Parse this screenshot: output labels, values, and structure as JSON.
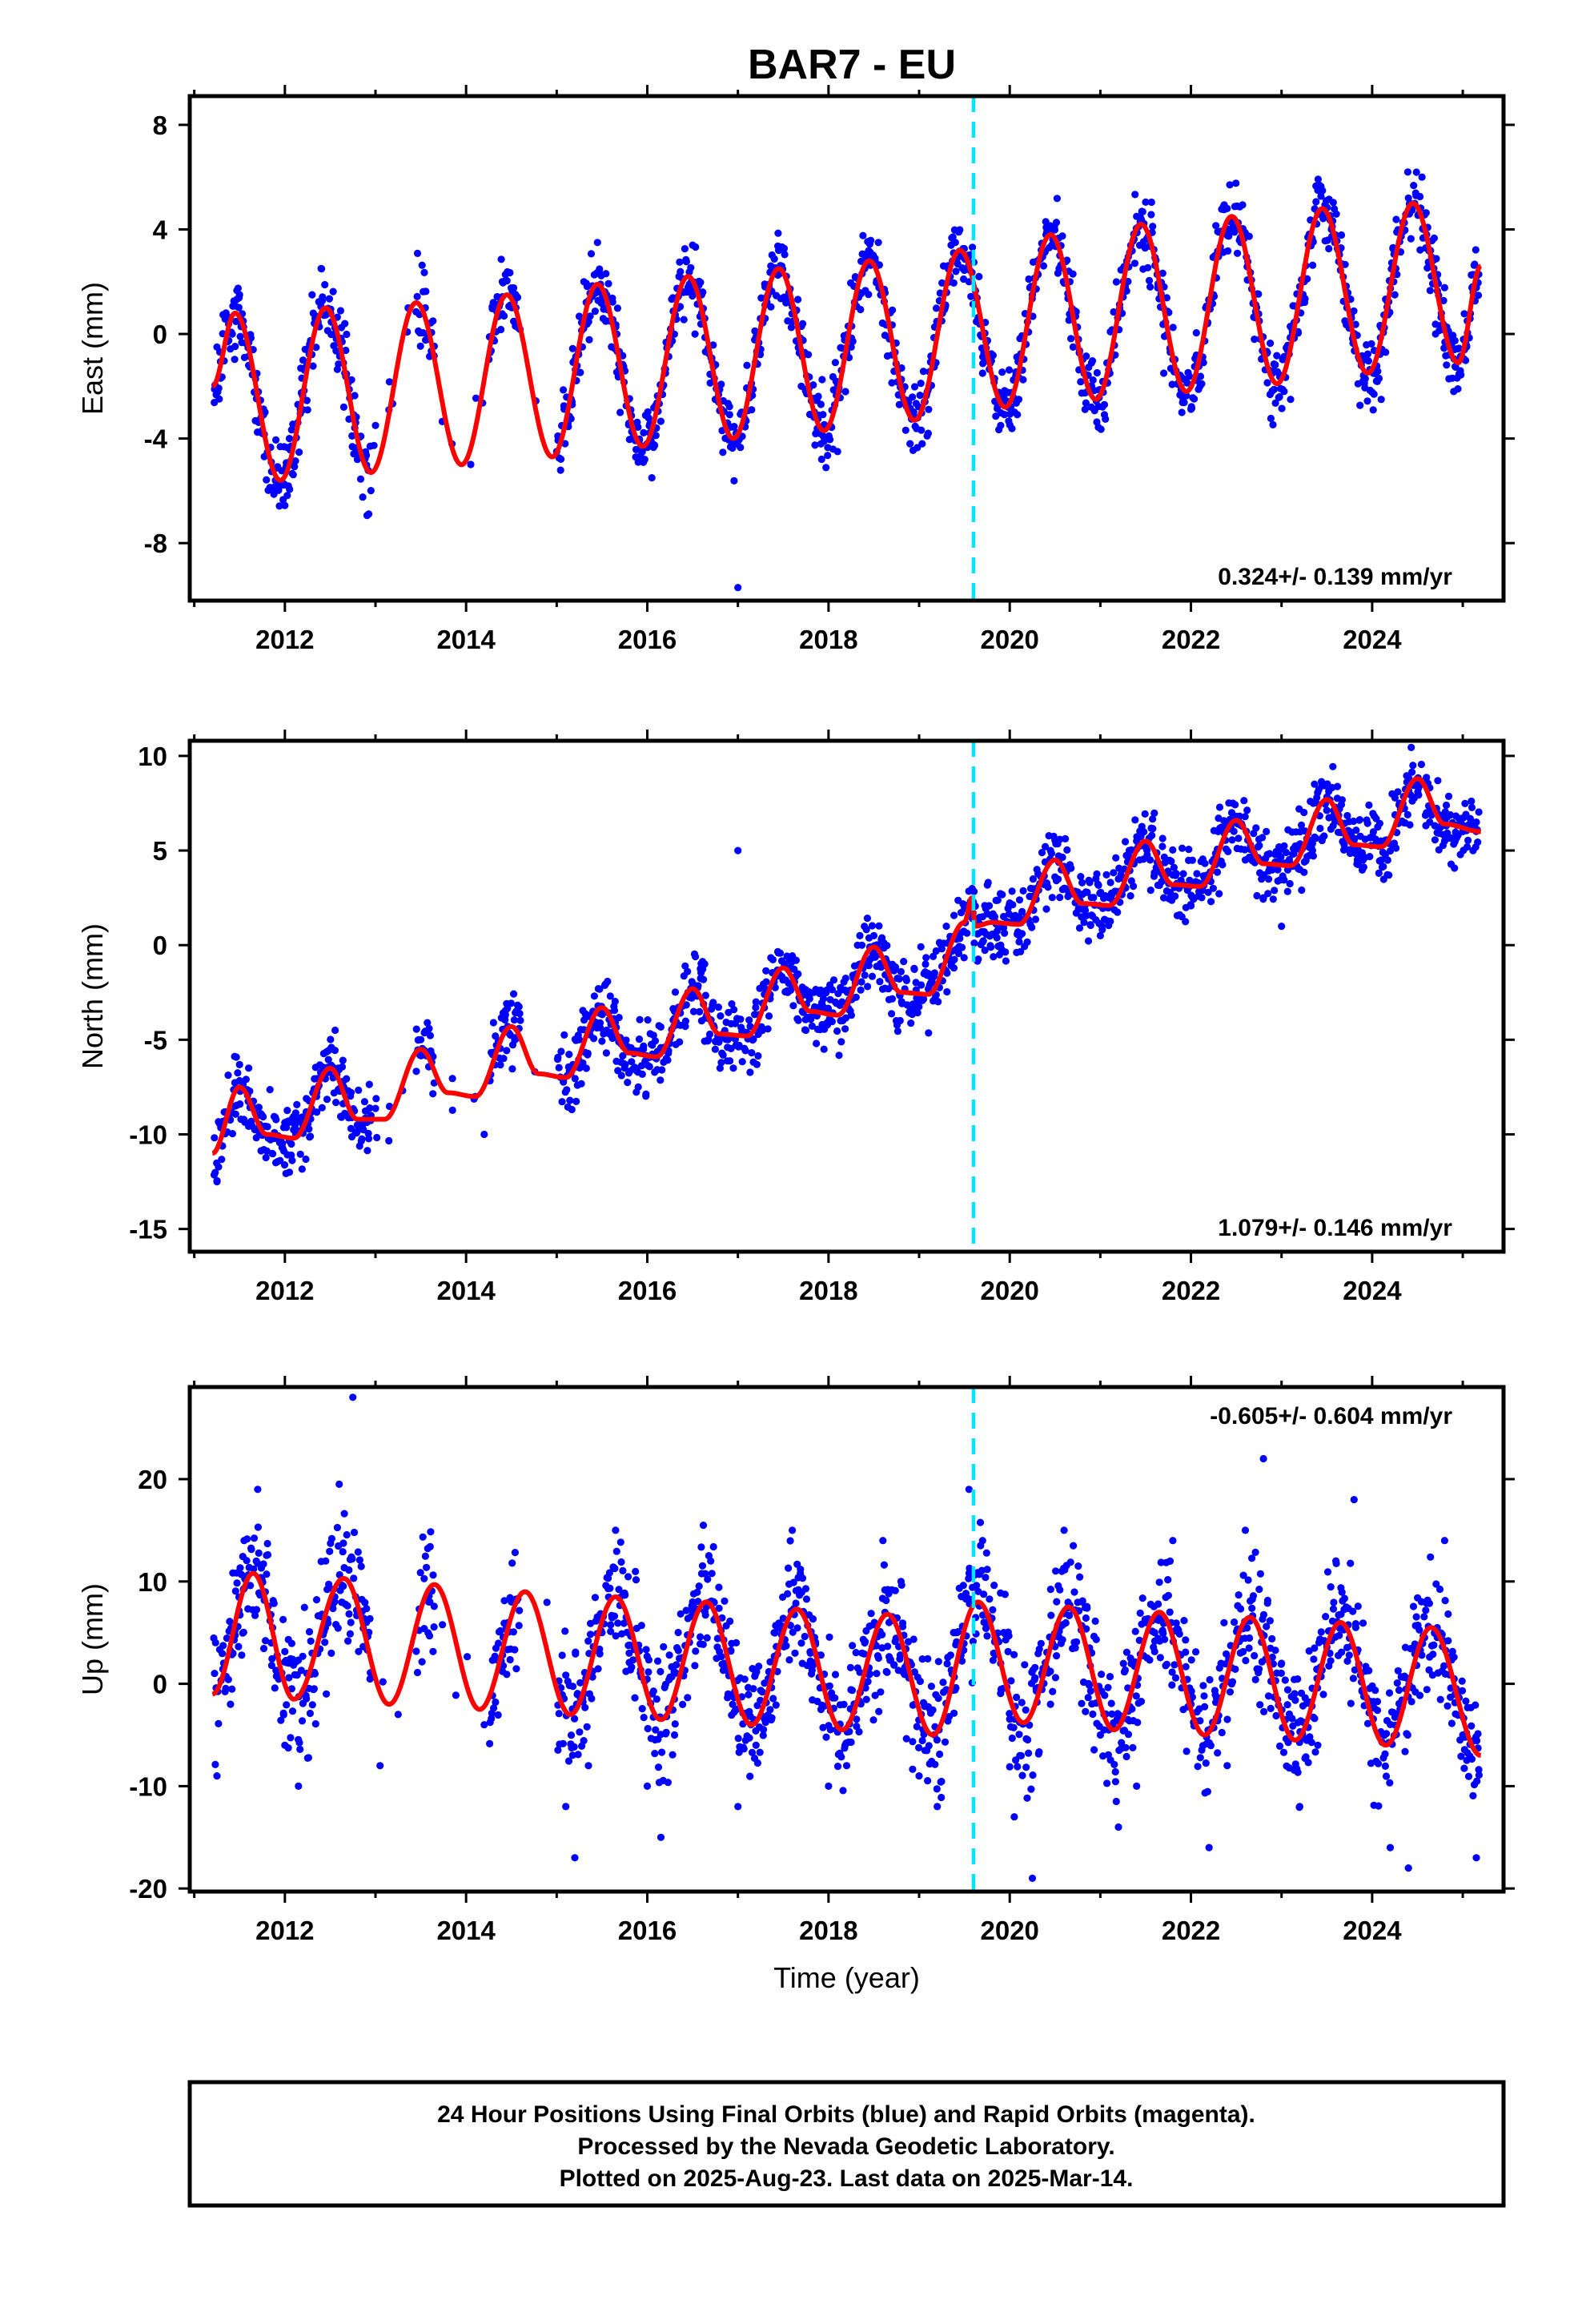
{
  "title": "BAR7 - EU",
  "footer": {
    "line1": "24 Hour Positions Using Final Orbits (blue) and Rapid Orbits (magenta).",
    "line2": "Processed by the Nevada Geodetic Laboratory.",
    "line3": "Plotted on 2025-Aug-23. Last data on 2025-Mar-14."
  },
  "colors": {
    "points": "#0000ff",
    "model": "#ff0000",
    "marker": "#00e5ff",
    "frame": "#000000"
  },
  "chart_data": [
    {
      "type": "scatter",
      "ylabel": "East (mm)",
      "xlabel": "",
      "xlim": [
        2010.95,
        2025.45
      ],
      "ylim": [
        -10.2,
        9.1
      ],
      "xticks": [
        "2012",
        "2014",
        "2016",
        "2018",
        "2020",
        "2022",
        "2024"
      ],
      "yticks": [
        "-8",
        "-4",
        "0",
        "4",
        "8"
      ],
      "marker_x": 2019.6,
      "rate_label": "0.324+/- 0.139 mm/yr",
      "rate_position": "bottom-right",
      "series": [
        {
          "kind": "points",
          "x": [
            2011.25,
            2011.35,
            2011.5,
            2011.6,
            2011.75,
            2011.85,
            2011.95,
            2012.05,
            2012.2,
            2012.3,
            2012.4,
            2012.55,
            2012.65,
            2012.8,
            2013.0,
            2013.55,
            2014.3,
            2014.4,
            2014.55,
            2015.0,
            2015.2,
            2015.3,
            2015.45,
            2015.55,
            2015.7,
            2015.9,
            2016.05,
            2016.2,
            2016.35,
            2016.5,
            2016.6,
            2016.75,
            2016.9,
            2017.0,
            2017.1,
            2017.3,
            2017.45,
            2017.55,
            2017.7,
            2017.9,
            2018.1,
            2018.25,
            2018.4,
            2018.55,
            2018.7,
            2018.9,
            2019.1,
            2019.25,
            2019.4,
            2019.55,
            2019.7,
            2019.9,
            2020.1,
            2020.25,
            2020.4,
            2020.55,
            2020.7,
            2020.9,
            2021.1,
            2021.25,
            2021.4,
            2021.55,
            2021.7,
            2021.9,
            2022.1,
            2022.25,
            2022.4,
            2022.55,
            2022.7,
            2022.9,
            2023.1,
            2023.25,
            2023.4,
            2023.55,
            2023.7,
            2023.9,
            2024.1,
            2024.25,
            2024.4,
            2024.55,
            2024.7,
            2024.9,
            2025.05,
            2025.15
          ],
          "y": [
            -0.5,
            0.8,
            1.5,
            -1.2,
            -3.8,
            -4.9,
            -5.8,
            -4.0,
            -1.0,
            1.5,
            2.5,
            0.0,
            -2.8,
            -4.8,
            -3.5,
            1.0,
            1.2,
            2.0,
            1.0,
            -4.5,
            -1.0,
            2.0,
            3.5,
            0.5,
            -3.0,
            -4.9,
            -5.5,
            -1.5,
            2.2,
            3.4,
            0.8,
            -2.5,
            -4.0,
            -9.7,
            -1.2,
            1.8,
            3.2,
            0.5,
            -2.0,
            -3.8,
            -4.5,
            -0.5,
            2.5,
            3.5,
            -0.8,
            -4.2,
            -3.8,
            0.5,
            3.5,
            2.0,
            -1.5,
            -3.5,
            -2.5,
            1.5,
            3.8,
            2.5,
            -0.5,
            -2.8,
            -1.5,
            2.5,
            4.5,
            1.8,
            -1.5,
            -3.0,
            -2.0,
            1.5,
            4.8,
            3.5,
            -0.2,
            -1.5,
            -2.5,
            2.0,
            5.5,
            4.0,
            0.5,
            -1.8,
            -2.5,
            1.5,
            5.2,
            6.0,
            0.0,
            -2.2,
            0.5,
            2.2
          ]
        },
        {
          "kind": "model",
          "x": [
            2011.2,
            2011.45,
            2011.95,
            2012.45,
            2012.95,
            2013.45,
            2013.95,
            2014.45,
            2014.95,
            2015.45,
            2015.95,
            2016.45,
            2016.95,
            2017.45,
            2017.95,
            2018.45,
            2018.95,
            2019.45,
            2019.95,
            2020.45,
            2020.95,
            2021.45,
            2021.95,
            2022.45,
            2022.95,
            2023.45,
            2023.95,
            2024.45,
            2024.95,
            2025.2
          ],
          "y": [
            -2.0,
            0.8,
            -5.6,
            1.0,
            -5.3,
            1.2,
            -5.0,
            1.5,
            -4.7,
            1.9,
            -4.3,
            2.2,
            -4.0,
            2.5,
            -3.7,
            2.8,
            -3.3,
            3.2,
            -2.8,
            3.8,
            -2.5,
            4.2,
            -2.2,
            4.5,
            -1.9,
            4.8,
            -1.5,
            5.0,
            -1.1,
            2.6
          ]
        }
      ]
    },
    {
      "type": "scatter",
      "ylabel": "North (mm)",
      "xlabel": "",
      "xlim": [
        2010.95,
        2025.45
      ],
      "ylim": [
        -16.2,
        10.8
      ],
      "xticks": [
        "2012",
        "2014",
        "2016",
        "2018",
        "2020",
        "2022",
        "2024"
      ],
      "yticks": [
        "-15",
        "-10",
        "-5",
        "0",
        "5",
        "10"
      ],
      "marker_x": 2019.6,
      "rate_label": "1.079+/- 0.146 mm/yr",
      "rate_position": "bottom-right",
      "series": [
        {
          "kind": "points",
          "x": [
            2011.25,
            2011.3,
            2011.45,
            2011.6,
            2011.75,
            2011.9,
            2012.05,
            2012.2,
            2012.35,
            2012.5,
            2012.65,
            2012.8,
            2012.95,
            2013.5,
            2014.1,
            2014.2,
            2014.45,
            2015.05,
            2015.25,
            2015.4,
            2015.55,
            2015.75,
            2015.9,
            2016.1,
            2016.3,
            2016.45,
            2016.6,
            2016.75,
            2016.95,
            2017.0,
            2017.2,
            2017.4,
            2017.55,
            2017.75,
            2017.95,
            2018.15,
            2018.35,
            2018.5,
            2018.7,
            2018.9,
            2019.1,
            2019.3,
            2019.5,
            2019.7,
            2019.9,
            2020.1,
            2020.3,
            2020.45,
            2020.6,
            2020.8,
            2021.0,
            2021.2,
            2021.4,
            2021.55,
            2021.7,
            2021.9,
            2022.1,
            2022.3,
            2022.45,
            2022.6,
            2022.8,
            2023.0,
            2023.2,
            2023.35,
            2023.5,
            2023.7,
            2023.9,
            2024.1,
            2024.3,
            2024.45,
            2024.6,
            2024.8,
            2025.0,
            2025.15
          ],
          "y": [
            -12.5,
            -9.5,
            -8.5,
            -6.5,
            -9.0,
            -11.5,
            -12.0,
            -9.5,
            -8.0,
            -5.5,
            -7.5,
            -9.5,
            -9.0,
            -5.0,
            -8.0,
            -10.0,
            -4.5,
            -7.0,
            -5.0,
            -3.5,
            -4.5,
            -6.5,
            -7.5,
            -6.0,
            -3.5,
            -2.5,
            -4.0,
            -5.5,
            -6.5,
            5.0,
            -3.0,
            -1.5,
            -2.5,
            -4.5,
            -5.5,
            -3.0,
            -1.0,
            0.5,
            -2.0,
            -3.5,
            -1.5,
            1.0,
            2.0,
            1.5,
            0.0,
            1.5,
            4.0,
            5.0,
            3.0,
            1.5,
            0.5,
            3.5,
            5.5,
            4.5,
            2.5,
            1.5,
            3.0,
            6.0,
            7.0,
            4.5,
            2.5,
            1.0,
            4.0,
            7.5,
            8.5,
            6.0,
            4.5,
            5.5,
            7.5,
            9.5,
            7.0,
            5.5,
            6.0,
            6.5
          ]
        },
        {
          "kind": "model",
          "x": [
            2011.2,
            2011.5,
            2011.8,
            2012.1,
            2012.5,
            2012.8,
            2013.1,
            2013.5,
            2013.8,
            2014.1,
            2014.5,
            2014.8,
            2015.1,
            2015.5,
            2015.8,
            2016.1,
            2016.5,
            2016.8,
            2017.1,
            2017.5,
            2017.8,
            2018.1,
            2018.5,
            2018.8,
            2019.1,
            2019.5,
            2019.58,
            2019.62,
            2019.8,
            2020.1,
            2020.5,
            2020.8,
            2021.1,
            2021.5,
            2021.8,
            2022.1,
            2022.5,
            2022.8,
            2023.1,
            2023.5,
            2023.8,
            2024.1,
            2024.5,
            2024.8,
            2025.2
          ],
          "y": [
            -11.0,
            -7.5,
            -10.0,
            -10.2,
            -6.5,
            -9.2,
            -9.2,
            -5.5,
            -7.8,
            -8.0,
            -4.3,
            -6.8,
            -7.0,
            -3.3,
            -5.7,
            -5.9,
            -2.3,
            -4.7,
            -4.8,
            -1.2,
            -3.5,
            -3.7,
            -0.1,
            -2.5,
            -2.6,
            1.2,
            2.5,
            1.0,
            1.2,
            1.1,
            4.5,
            2.2,
            2.1,
            5.5,
            3.2,
            3.1,
            6.6,
            4.3,
            4.2,
            7.7,
            5.3,
            5.2,
            8.8,
            6.4,
            6.0
          ]
        }
      ]
    },
    {
      "type": "scatter",
      "ylabel": "Up (mm)",
      "xlabel": "Time (year)",
      "xlim": [
        2010.95,
        2025.45
      ],
      "ylim": [
        -20.3,
        29.0
      ],
      "xticks": [
        "2012",
        "2014",
        "2016",
        "2018",
        "2020",
        "2022",
        "2024"
      ],
      "yticks": [
        "-20",
        "-10",
        "0",
        "10",
        "20"
      ],
      "marker_x": 2019.6,
      "rate_label": "-0.605+/- 0.604 mm/yr",
      "rate_position": "top-right",
      "series": [
        {
          "kind": "points",
          "x": [
            2011.25,
            2011.4,
            2011.55,
            2011.7,
            2011.85,
            2012.0,
            2012.15,
            2012.3,
            2012.45,
            2012.6,
            2012.75,
            2012.9,
            2013.05,
            2013.25,
            2013.6,
            2014.2,
            2014.5,
            2015.1,
            2015.2,
            2015.35,
            2015.5,
            2015.65,
            2015.8,
            2016.0,
            2016.15,
            2016.3,
            2016.5,
            2016.7,
            2016.85,
            2017.0,
            2017.2,
            2017.4,
            2017.6,
            2017.8,
            2018.0,
            2018.2,
            2018.4,
            2018.6,
            2018.8,
            2019.0,
            2019.2,
            2019.4,
            2019.55,
            2019.7,
            2019.9,
            2020.05,
            2020.25,
            2020.45,
            2020.6,
            2020.8,
            2021.0,
            2021.2,
            2021.4,
            2021.6,
            2021.8,
            2022.0,
            2022.2,
            2022.4,
            2022.6,
            2022.8,
            2023.0,
            2023.2,
            2023.4,
            2023.6,
            2023.8,
            2024.0,
            2024.2,
            2024.4,
            2024.6,
            2024.8,
            2025.0,
            2025.15
          ],
          "y": [
            -9.0,
            -2.0,
            14.0,
            19.0,
            4.0,
            -6.0,
            -10.0,
            3.0,
            12.0,
            19.5,
            28.0,
            6.0,
            -8.0,
            -3.0,
            8.0,
            -4.0,
            8.0,
            -12.0,
            -17.0,
            -8.0,
            5.0,
            15.0,
            3.0,
            -10.0,
            -15.0,
            -5.0,
            8.0,
            12.0,
            2.0,
            -12.0,
            -6.0,
            5.0,
            15.0,
            3.0,
            -10.0,
            -8.0,
            4.0,
            14.0,
            10.0,
            -9.0,
            -12.0,
            5.0,
            19.0,
            14.0,
            2.0,
            -13.0,
            -19.0,
            -2.0,
            15.0,
            8.0,
            -5.0,
            -14.0,
            -10.0,
            5.0,
            14.0,
            -2.0,
            -16.0,
            -8.0,
            15.0,
            22.0,
            2.0,
            -12.0,
            -6.0,
            12.0,
            18.0,
            -2.0,
            -16.0,
            -18.0,
            8.0,
            14.0,
            -5.0,
            -17.0
          ]
        },
        {
          "kind": "model",
          "x": [
            2011.2,
            2011.65,
            2012.1,
            2012.65,
            2013.15,
            2013.65,
            2014.15,
            2014.65,
            2015.15,
            2015.65,
            2016.15,
            2016.65,
            2017.15,
            2017.65,
            2018.15,
            2018.65,
            2019.15,
            2019.65,
            2020.15,
            2020.65,
            2021.15,
            2021.65,
            2022.15,
            2022.65,
            2023.15,
            2023.65,
            2024.15,
            2024.65,
            2025.2
          ],
          "y": [
            -1.0,
            10.8,
            -1.5,
            10.3,
            -2.0,
            9.7,
            -2.5,
            9.0,
            -3.0,
            8.5,
            -3.5,
            8.0,
            -4.0,
            7.3,
            -4.5,
            6.8,
            -5.0,
            8.0,
            -3.8,
            7.5,
            -4.5,
            7.0,
            -5.0,
            6.5,
            -5.5,
            6.0,
            -6.0,
            5.5,
            -7.0
          ]
        }
      ]
    }
  ]
}
